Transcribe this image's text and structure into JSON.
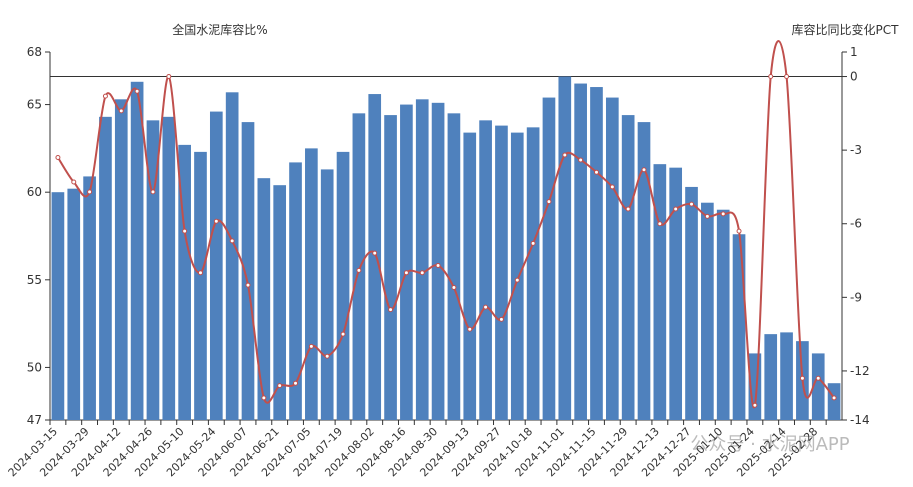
{
  "chart_data": {
    "type": "bar-line",
    "y_title": "全国水泥库容比%",
    "y2_title": "库容比同比变化PCT",
    "watermark": "公众号 · 水泥网APP",
    "categories": [
      "2024-03-15",
      null,
      "2024-03-29",
      null,
      "2024-04-12",
      null,
      "2024-04-26",
      null,
      "2024-05-10",
      null,
      "2024-05-24",
      null,
      "2024-06-07",
      null,
      "2024-06-21",
      null,
      "2024-07-05",
      null,
      "2024-07-19",
      null,
      "2024-08-02",
      null,
      "2024-08-16",
      null,
      "2024-08-30",
      null,
      "2024-09-13",
      null,
      "2024-09-27",
      null,
      "2024-10-18",
      null,
      "2024-11-01",
      null,
      "2024-11-15",
      null,
      "2024-11-29",
      null,
      "2024-12-13",
      null,
      "2024-12-27",
      null,
      "2025-01-10",
      null,
      "2025-01-24",
      null,
      "2025-02-14",
      null,
      "2025-02-28",
      null
    ],
    "series": [
      {
        "name": "全国水泥库容比%",
        "type": "bar",
        "color": "#4f81bd",
        "values": [
          60.0,
          60.2,
          60.9,
          64.3,
          65.3,
          66.3,
          64.1,
          64.3,
          62.7,
          62.3,
          64.6,
          65.7,
          64.0,
          60.8,
          60.4,
          61.7,
          62.5,
          61.3,
          62.3,
          64.5,
          65.6,
          64.4,
          65.0,
          65.3,
          65.1,
          64.5,
          63.4,
          64.1,
          63.8,
          63.4,
          63.7,
          65.4,
          66.6,
          66.2,
          66.0,
          65.4,
          64.4,
          64.0,
          61.6,
          61.4,
          60.3,
          59.4,
          59.0,
          57.6,
          50.8,
          51.9,
          52.0,
          51.5,
          50.8,
          49.1
        ]
      },
      {
        "name": "库容比同比变化PCT",
        "type": "line",
        "axis": "y2",
        "color": "#c0504d",
        "values": [
          -3.3,
          -4.3,
          -4.7,
          -0.8,
          -1.4,
          -0.6,
          -4.7,
          0.0,
          -6.3,
          -8.0,
          -5.9,
          -6.7,
          -8.5,
          -13.1,
          -12.6,
          -12.5,
          -11.0,
          -11.4,
          -10.5,
          -7.9,
          -7.2,
          -9.5,
          -8.0,
          -8.0,
          -7.7,
          -8.6,
          -10.3,
          -9.4,
          -9.9,
          -8.3,
          -6.8,
          -5.1,
          -3.2,
          -3.4,
          -3.9,
          -4.5,
          -5.4,
          -3.8,
          -6.0,
          -5.4,
          -5.2,
          -5.7,
          -5.6,
          -6.3,
          -13.4,
          0.0,
          0.0,
          -12.3,
          -12.3,
          -13.1
        ]
      }
    ],
    "ylim": [
      47,
      68
    ],
    "yticks": [
      47,
      50,
      55,
      60,
      65,
      68
    ],
    "y2lim": [
      -14,
      1
    ],
    "y2ticks": [
      -14,
      -12,
      -9,
      -6,
      -3,
      0,
      1
    ]
  }
}
